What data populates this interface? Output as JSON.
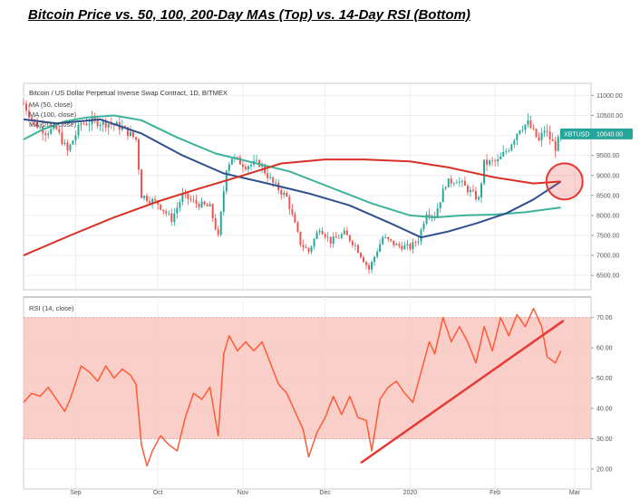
{
  "page": {
    "title": "Bitcoin Price vs. 50, 100, 200-Day MAs (Top) vs. 14-Day RSI (Bottom)"
  },
  "price_panel": {
    "legend_title": "Bitcoin / US Dollar Perpetual Inverse Swap Contract, 1D, BITMEX",
    "legend_ma1": "MA (50, close)",
    "legend_ma2": "MA (100, close)",
    "legend_ma3": "MA (200, close)",
    "badge_label": "XBTUSD",
    "badge_value": "10040.00"
  },
  "rsi_panel": {
    "legend": "RSI (14, close)"
  },
  "colors": {
    "candle_up": "#26a69a",
    "candle_down": "#ef5350",
    "ma50": "#3bb39a",
    "ma100": "#2f4f8f",
    "ma200": "#d93025",
    "rsi_line": "#ff5a36",
    "rsi_band": "#f9c6c0",
    "annotation": "#e53935",
    "badge": "#26a69a"
  },
  "chart_data": [
    {
      "type": "candlestick",
      "xlim": [
        "2019-08-13",
        "2020-03-07"
      ],
      "ylim": [
        6300,
        11100
      ],
      "y_ticks": [
        6500,
        7000,
        7500,
        8000,
        8500,
        9000,
        9500,
        10000,
        10500,
        11000
      ],
      "y_tick_labels": [
        "6500.00",
        "7000.00",
        "7500.00",
        "8000.00",
        "8500.00",
        "9000.00",
        "9500.00",
        "10000.00",
        "10500.00",
        "11000.00"
      ],
      "x_ticks": [
        "2019-09-01",
        "2019-10-01",
        "2019-11-01",
        "2019-12-01",
        "2020-01-01",
        "2020-02-01",
        "2020-03-01"
      ],
      "x_tick_labels": [
        "Sep",
        "Oct",
        "Nov",
        "Dec",
        "2020",
        "Feb",
        "Mar"
      ],
      "grid": true,
      "close_anchors": [
        [
          "2019-08-13",
          10800
        ],
        [
          "2019-08-17",
          10300
        ],
        [
          "2019-08-21",
          10100
        ],
        [
          "2019-08-25",
          10150
        ],
        [
          "2019-08-29",
          9600
        ],
        [
          "2019-09-03",
          10300
        ],
        [
          "2019-09-08",
          10350
        ],
        [
          "2019-09-13",
          10300
        ],
        [
          "2019-09-18",
          10200
        ],
        [
          "2019-09-23",
          9900
        ],
        [
          "2019-09-25",
          8500
        ],
        [
          "2019-10-01",
          8300
        ],
        [
          "2019-10-06",
          7900
        ],
        [
          "2019-10-10",
          8500
        ],
        [
          "2019-10-15",
          8300
        ],
        [
          "2019-10-20",
          8200
        ],
        [
          "2019-10-23",
          7450
        ],
        [
          "2019-10-26",
          9200
        ],
        [
          "2019-10-28",
          9450
        ],
        [
          "2019-11-02",
          9250
        ],
        [
          "2019-11-07",
          9300
        ],
        [
          "2019-11-12",
          8800
        ],
        [
          "2019-11-17",
          8450
        ],
        [
          "2019-11-22",
          7300
        ],
        [
          "2019-11-25",
          7100
        ],
        [
          "2019-11-29",
          7700
        ],
        [
          "2019-12-03",
          7350
        ],
        [
          "2019-12-08",
          7550
        ],
        [
          "2019-12-12",
          7250
        ],
        [
          "2019-12-17",
          6650
        ],
        [
          "2019-12-22",
          7450
        ],
        [
          "2019-12-27",
          7250
        ],
        [
          "2020-01-01",
          7200
        ],
        [
          "2020-01-04",
          7400
        ],
        [
          "2020-01-07",
          8100
        ],
        [
          "2020-01-10",
          8000
        ],
        [
          "2020-01-14",
          8800
        ],
        [
          "2020-01-18",
          8900
        ],
        [
          "2020-01-22",
          8650
        ],
        [
          "2020-01-26",
          8400
        ],
        [
          "2020-01-28",
          9300
        ],
        [
          "2020-02-02",
          9350
        ],
        [
          "2020-02-06",
          9700
        ],
        [
          "2020-02-10",
          10200
        ],
        [
          "2020-02-13",
          10300
        ],
        [
          "2020-02-17",
          9850
        ],
        [
          "2020-02-19",
          10150
        ],
        [
          "2020-02-23",
          9700
        ],
        [
          "2020-02-25",
          10040
        ]
      ],
      "series": [
        {
          "name": "MA (50, close)",
          "x": [
            "2019-08-13",
            "2019-08-20",
            "2019-08-28",
            "2019-09-05",
            "2019-09-15",
            "2019-09-25",
            "2019-10-08",
            "2019-10-22",
            "2019-11-03",
            "2019-11-18",
            "2019-12-03",
            "2019-12-18",
            "2020-01-01",
            "2020-01-10",
            "2020-01-20",
            "2020-02-01",
            "2020-02-12",
            "2020-02-25"
          ],
          "values": [
            9900,
            10150,
            10350,
            10450,
            10500,
            10380,
            9950,
            9550,
            9350,
            9100,
            8700,
            8300,
            8000,
            7950,
            8000,
            8020,
            8080,
            8200
          ]
        },
        {
          "name": "MA (100, close)",
          "x": [
            "2019-08-13",
            "2019-08-25",
            "2019-09-10",
            "2019-09-25",
            "2019-10-10",
            "2019-10-25",
            "2019-11-10",
            "2019-11-25",
            "2019-12-10",
            "2019-12-25",
            "2020-01-05",
            "2020-01-15",
            "2020-01-25",
            "2020-02-05",
            "2020-02-15",
            "2020-02-25"
          ],
          "values": [
            10400,
            10300,
            10400,
            10050,
            9500,
            9050,
            8800,
            8550,
            8250,
            7800,
            7450,
            7600,
            7800,
            8050,
            8400,
            8850
          ]
        },
        {
          "name": "MA (200, close)",
          "x": [
            "2019-08-13",
            "2019-08-30",
            "2019-09-15",
            "2019-10-01",
            "2019-10-15",
            "2019-11-01",
            "2019-11-15",
            "2019-12-01",
            "2019-12-15",
            "2020-01-01",
            "2020-01-15",
            "2020-02-01",
            "2020-02-15",
            "2020-02-25"
          ],
          "values": [
            7000,
            7500,
            7950,
            8350,
            8650,
            9000,
            9300,
            9400,
            9400,
            9350,
            9200,
            8950,
            8800,
            8850
          ]
        }
      ],
      "annotations": [
        {
          "type": "circle",
          "x": "2020-02-25",
          "y": 8850
        }
      ]
    },
    {
      "type": "line",
      "name": "RSI (14, close)",
      "ylim": [
        17,
        75
      ],
      "y_ticks": [
        20,
        30,
        40,
        50,
        60,
        70
      ],
      "y_tick_labels": [
        "20.00",
        "30.00",
        "40.00",
        "50.00",
        "60.00",
        "70.00"
      ],
      "band": [
        30,
        70
      ],
      "x": [
        "2019-08-13",
        "2019-08-16",
        "2019-08-19",
        "2019-08-22",
        "2019-08-25",
        "2019-08-28",
        "2019-08-30",
        "2019-09-03",
        "2019-09-06",
        "2019-09-09",
        "2019-09-12",
        "2019-09-15",
        "2019-09-18",
        "2019-09-21",
        "2019-09-23",
        "2019-09-25",
        "2019-09-27",
        "2019-09-29",
        "2019-10-02",
        "2019-10-05",
        "2019-10-08",
        "2019-10-11",
        "2019-10-14",
        "2019-10-17",
        "2019-10-20",
        "2019-10-23",
        "2019-10-25",
        "2019-10-27",
        "2019-10-30",
        "2019-11-02",
        "2019-11-05",
        "2019-11-08",
        "2019-11-11",
        "2019-11-14",
        "2019-11-17",
        "2019-11-20",
        "2019-11-23",
        "2019-11-25",
        "2019-11-28",
        "2019-12-01",
        "2019-12-04",
        "2019-12-07",
        "2019-12-10",
        "2019-12-13",
        "2019-12-16",
        "2019-12-18",
        "2019-12-21",
        "2019-12-24",
        "2019-12-27",
        "2019-12-30",
        "2020-01-02",
        "2020-01-05",
        "2020-01-08",
        "2020-01-10",
        "2020-01-13",
        "2020-01-16",
        "2020-01-19",
        "2020-01-22",
        "2020-01-25",
        "2020-01-28",
        "2020-01-31",
        "2020-02-03",
        "2020-02-06",
        "2020-02-09",
        "2020-02-12",
        "2020-02-15",
        "2020-02-18",
        "2020-02-20",
        "2020-02-23",
        "2020-02-25"
      ],
      "values": [
        42,
        45,
        44,
        47,
        43,
        39,
        43,
        54,
        52,
        49,
        54,
        50,
        53,
        51,
        48,
        28,
        21,
        26,
        31,
        28,
        26,
        37,
        45,
        43,
        47,
        31,
        58,
        64,
        59,
        62,
        59,
        62,
        55,
        48,
        45,
        39,
        33,
        24,
        32,
        37,
        44,
        38,
        44,
        37,
        36,
        26,
        43,
        47,
        49,
        45,
        42,
        52,
        62,
        58,
        70,
        62,
        67,
        62,
        55,
        67,
        59,
        70,
        64,
        71,
        67,
        73,
        67,
        57,
        55,
        59
      ]
    }
  ]
}
